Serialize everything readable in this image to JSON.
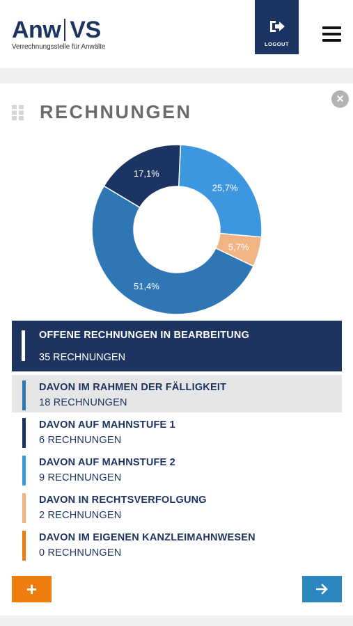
{
  "header": {
    "logo_left": "Anw",
    "logo_right": "VS",
    "logo_subtitle": "Verrechnungsstelle für Anwälte",
    "logout_label": "LOGOUT"
  },
  "card": {
    "title": "RECHNUNGEN"
  },
  "chart_data": {
    "type": "pie",
    "donut": true,
    "slices": [
      {
        "label": "25,7%",
        "value": 25.7,
        "color": "#3d97de"
      },
      {
        "label": "5,7%",
        "value": 5.7,
        "color": "#f1b583"
      },
      {
        "label": "51,4%",
        "value": 51.4,
        "color": "#2e76b4"
      },
      {
        "label": "17,1%",
        "value": 17.1,
        "color": "#1c3461"
      }
    ]
  },
  "list": {
    "summary": {
      "title": "OFFENE RECHNUNGEN IN BEARBEITUNG",
      "count": "35 RECHNUNGEN"
    },
    "items": [
      {
        "title": "DAVON IM RAHMEN DER FÄLLIGKEIT",
        "count": "18 RECHNUNGEN",
        "color": "#2e76b4"
      },
      {
        "title": "DAVON AUF MAHNSTUFE 1",
        "count": "6 RECHNUNGEN",
        "color": "#1c3461"
      },
      {
        "title": "DAVON AUF MAHNSTUFE 2",
        "count": "9 RECHNUNGEN",
        "color": "#3a9ad9"
      },
      {
        "title": "DAVON IN RECHTSVERFOLGUNG",
        "count": "2 RECHNUNGEN",
        "color": "#f1b583"
      },
      {
        "title": "DAVON IM EIGENEN KANZLEIMAHNWESEN",
        "count": "0 RECHNUNGEN",
        "color": "#ee7d10"
      }
    ]
  },
  "buttons": {
    "add_label": "+"
  },
  "colors": {
    "brand_dark": "#1d3461",
    "accent_orange": "#ee7d10",
    "accent_blue": "#2c86c0"
  }
}
